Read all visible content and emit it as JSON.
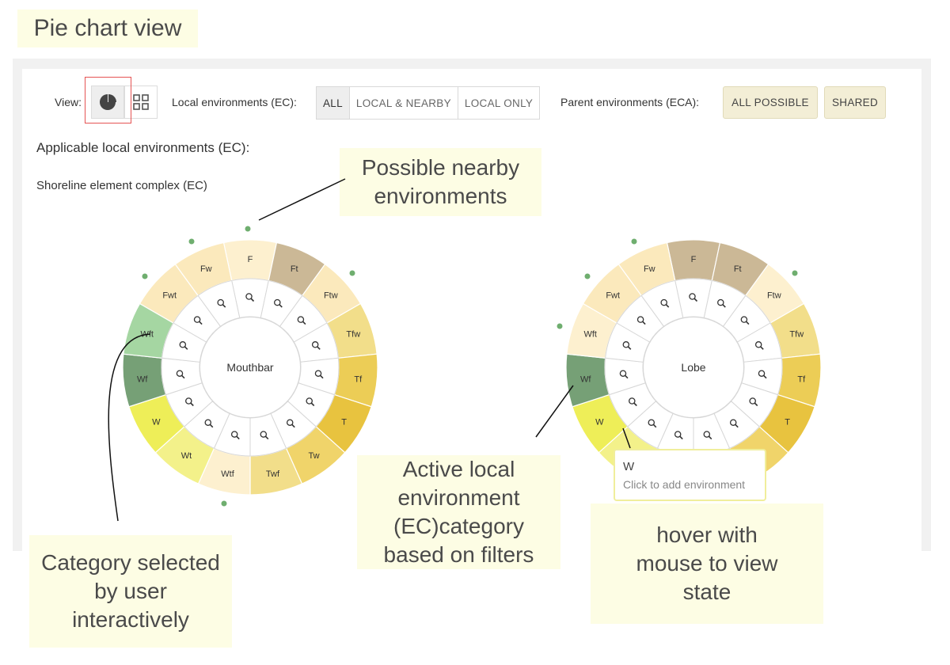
{
  "annotation_title": "Pie chart view",
  "toolbar": {
    "view_label": "View:",
    "local_label": "Local environments (EC):",
    "local_options": [
      "ALL",
      "LOCAL & NEARBY",
      "LOCAL ONLY"
    ],
    "parent_label": "Parent environments (ECA):",
    "parent_all": "ALL POSSIBLE",
    "parent_shared": "SHARED"
  },
  "applicable_heading": "Applicable local environments (EC):",
  "element_name": "Shoreline element complex (EC)",
  "colors": {
    "light_cream": "#fdf0cf",
    "cream": "#fbe9bc",
    "tan": "#cbb896",
    "yellow_1": "#f2de8a",
    "yellow_2": "#eccd56",
    "yellow_3": "#e8c33f",
    "yellow_4": "#f0d46a",
    "lime": "#eeee58",
    "lime_light": "#f3f18a",
    "green_light": "#a5d6a2",
    "green_dark": "#76a076",
    "dot": "#6fae6f"
  },
  "wheels": [
    {
      "center_label": "Mouthbar",
      "segments": [
        {
          "label": "F",
          "color": "#fdf0cf"
        },
        {
          "label": "Ft",
          "color": "#cbb896"
        },
        {
          "label": "Ftw",
          "color": "#fbe9bc"
        },
        {
          "label": "Tfw",
          "color": "#f2de8a"
        },
        {
          "label": "Tf",
          "color": "#eccd56"
        },
        {
          "label": "T",
          "color": "#e8c33f"
        },
        {
          "label": "Tw",
          "color": "#f0d46a"
        },
        {
          "label": "Twf",
          "color": "#f2de8a"
        },
        {
          "label": "Wtf",
          "color": "#fdf0cf"
        },
        {
          "label": "Wt",
          "color": "#f3f18a"
        },
        {
          "label": "W",
          "color": "#eeee58"
        },
        {
          "label": "Wf",
          "color": "#76a076"
        },
        {
          "label": "Wft",
          "color": "#a5d6a2"
        },
        {
          "label": "Fwt",
          "color": "#fbe9bc"
        },
        {
          "label": "Fw",
          "color": "#fbe9bc"
        }
      ]
    },
    {
      "center_label": "Lobe",
      "segments": [
        {
          "label": "F",
          "color": "#cbb896"
        },
        {
          "label": "Ft",
          "color": "#cbb896"
        },
        {
          "label": "Ftw",
          "color": "#fdf0cf"
        },
        {
          "label": "Tfw",
          "color": "#f2de8a"
        },
        {
          "label": "Tf",
          "color": "#eccd56"
        },
        {
          "label": "T",
          "color": "#e8c33f"
        },
        {
          "label": "",
          "color": "#f0d46a"
        },
        {
          "label": "",
          "color": "#f2de8a"
        },
        {
          "label": "",
          "color": "#fdf0cf"
        },
        {
          "label": "",
          "color": "#f3f18a"
        },
        {
          "label": "W",
          "color": "#eeee58"
        },
        {
          "label": "Wf",
          "color": "#76a076"
        },
        {
          "label": "Wft",
          "color": "#fdf0cf"
        },
        {
          "label": "Fwt",
          "color": "#fbe9bc"
        },
        {
          "label": "Fw",
          "color": "#fbe9bc"
        }
      ]
    }
  ],
  "tooltip": {
    "title": "W",
    "subtitle": "Click to add environment"
  },
  "notes": {
    "nearby": "Possible nearby environments",
    "active": "Active local environment (EC)category based on filters",
    "selected": "Category selected by user interactively",
    "hover": "hover with mouse to view state"
  },
  "icons": {
    "pie": "pie-chart-icon",
    "grid": "grid-icon",
    "zoom": "magnifier-icon"
  }
}
